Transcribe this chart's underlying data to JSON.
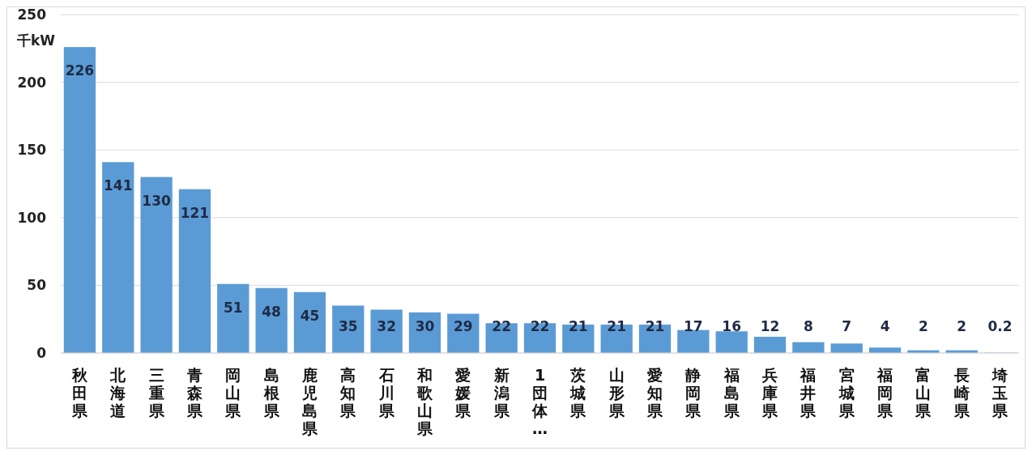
{
  "chart_data": {
    "type": "bar",
    "ylabel": "千kW",
    "categories": [
      "秋田県",
      "北海道",
      "三重県",
      "青森県",
      "岡山県",
      "島根県",
      "鹿児島県",
      "高知県",
      "石川県",
      "和歌山県",
      "愛媛県",
      "新潟県",
      "1団体…",
      "茨城県",
      "山形県",
      "愛知県",
      "静岡県",
      "福島県",
      "兵庫県",
      "福井県",
      "宮城県",
      "福岡県",
      "富山県",
      "長崎県",
      "埼玉県"
    ],
    "values": [
      226,
      141,
      130,
      121,
      51,
      48,
      45,
      35,
      32,
      30,
      29,
      22,
      22,
      21,
      21,
      21,
      17,
      16,
      12,
      8,
      7,
      4,
      2,
      2,
      0.2
    ],
    "color": "#5b9bd5",
    "ylim": [
      0,
      250
    ],
    "yticks": [
      0,
      50,
      100,
      150,
      200,
      250
    ],
    "grid": "y",
    "data_labels": true
  }
}
